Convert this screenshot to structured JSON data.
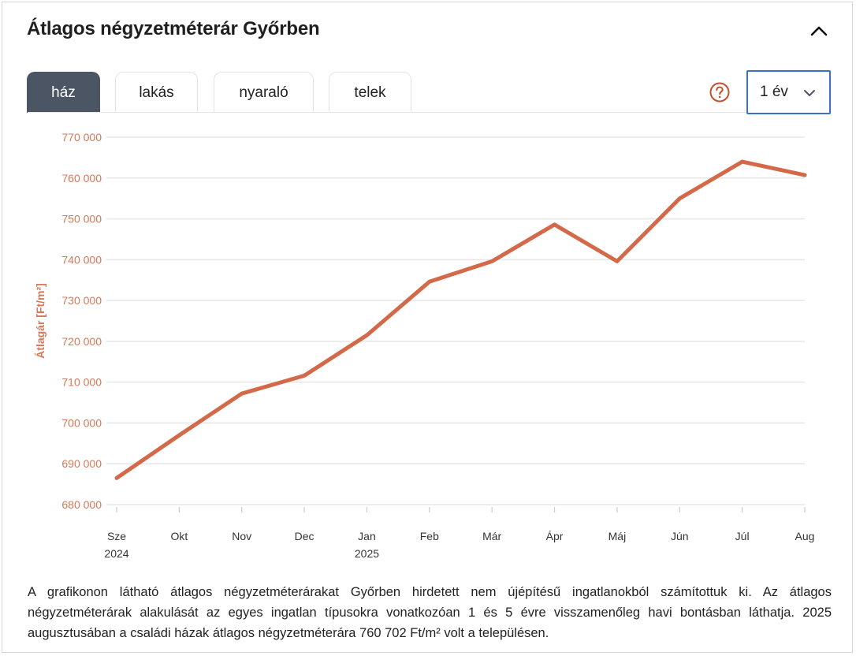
{
  "title": "Átlagos négyzetméterár Győrben",
  "icons": {
    "collapse": "chevron-up-icon",
    "help": "question-circle-icon",
    "dropdown": "chevron-down-icon"
  },
  "tabs": [
    {
      "label": "ház",
      "active": true
    },
    {
      "label": "lakás",
      "active": false
    },
    {
      "label": "nyaraló",
      "active": false
    },
    {
      "label": "telek",
      "active": false
    }
  ],
  "period_select": {
    "value": "1 év"
  },
  "colors": {
    "line": "#d4694a",
    "axis_text": "#d4795a",
    "active_tab": "#4c5563",
    "select_border": "#3a6fd0"
  },
  "chart_data": {
    "type": "line",
    "ylabel": "Átlagár [Ft/m²]",
    "ylim": [
      680000,
      770000
    ],
    "yticks": [
      "680 000",
      "690 000",
      "700 000",
      "710 000",
      "720 000",
      "730 000",
      "740 000",
      "750 000",
      "760 000",
      "770 000"
    ],
    "categories": [
      {
        "month": "Sze",
        "year": "2024"
      },
      {
        "month": "Okt",
        "year": ""
      },
      {
        "month": "Nov",
        "year": ""
      },
      {
        "month": "Dec",
        "year": ""
      },
      {
        "month": "Jan",
        "year": "2025"
      },
      {
        "month": "Feb",
        "year": ""
      },
      {
        "month": "Már",
        "year": ""
      },
      {
        "month": "Ápr",
        "year": ""
      },
      {
        "month": "Máj",
        "year": ""
      },
      {
        "month": "Jún",
        "year": ""
      },
      {
        "month": "Júl",
        "year": ""
      },
      {
        "month": "Aug",
        "year": ""
      }
    ],
    "values": [
      686500,
      697000,
      707200,
      711600,
      721500,
      734600,
      739600,
      748600,
      739600,
      755000,
      764000,
      760702
    ],
    "grid": true
  },
  "description": "A grafikonon látható átlagos négyzetméterárakat Győrben hirdetett nem újépítésű ingatlanokból számítottuk ki. Az átlagos négyzetméterárak alakulását az egyes ingatlan típusokra vonatkozóan 1 és 5 évre visszamenőleg havi bontásban láthatja. 2025 augusztusában a családi házak átlagos négyzetméterára 760 702 Ft/m² volt a településen."
}
